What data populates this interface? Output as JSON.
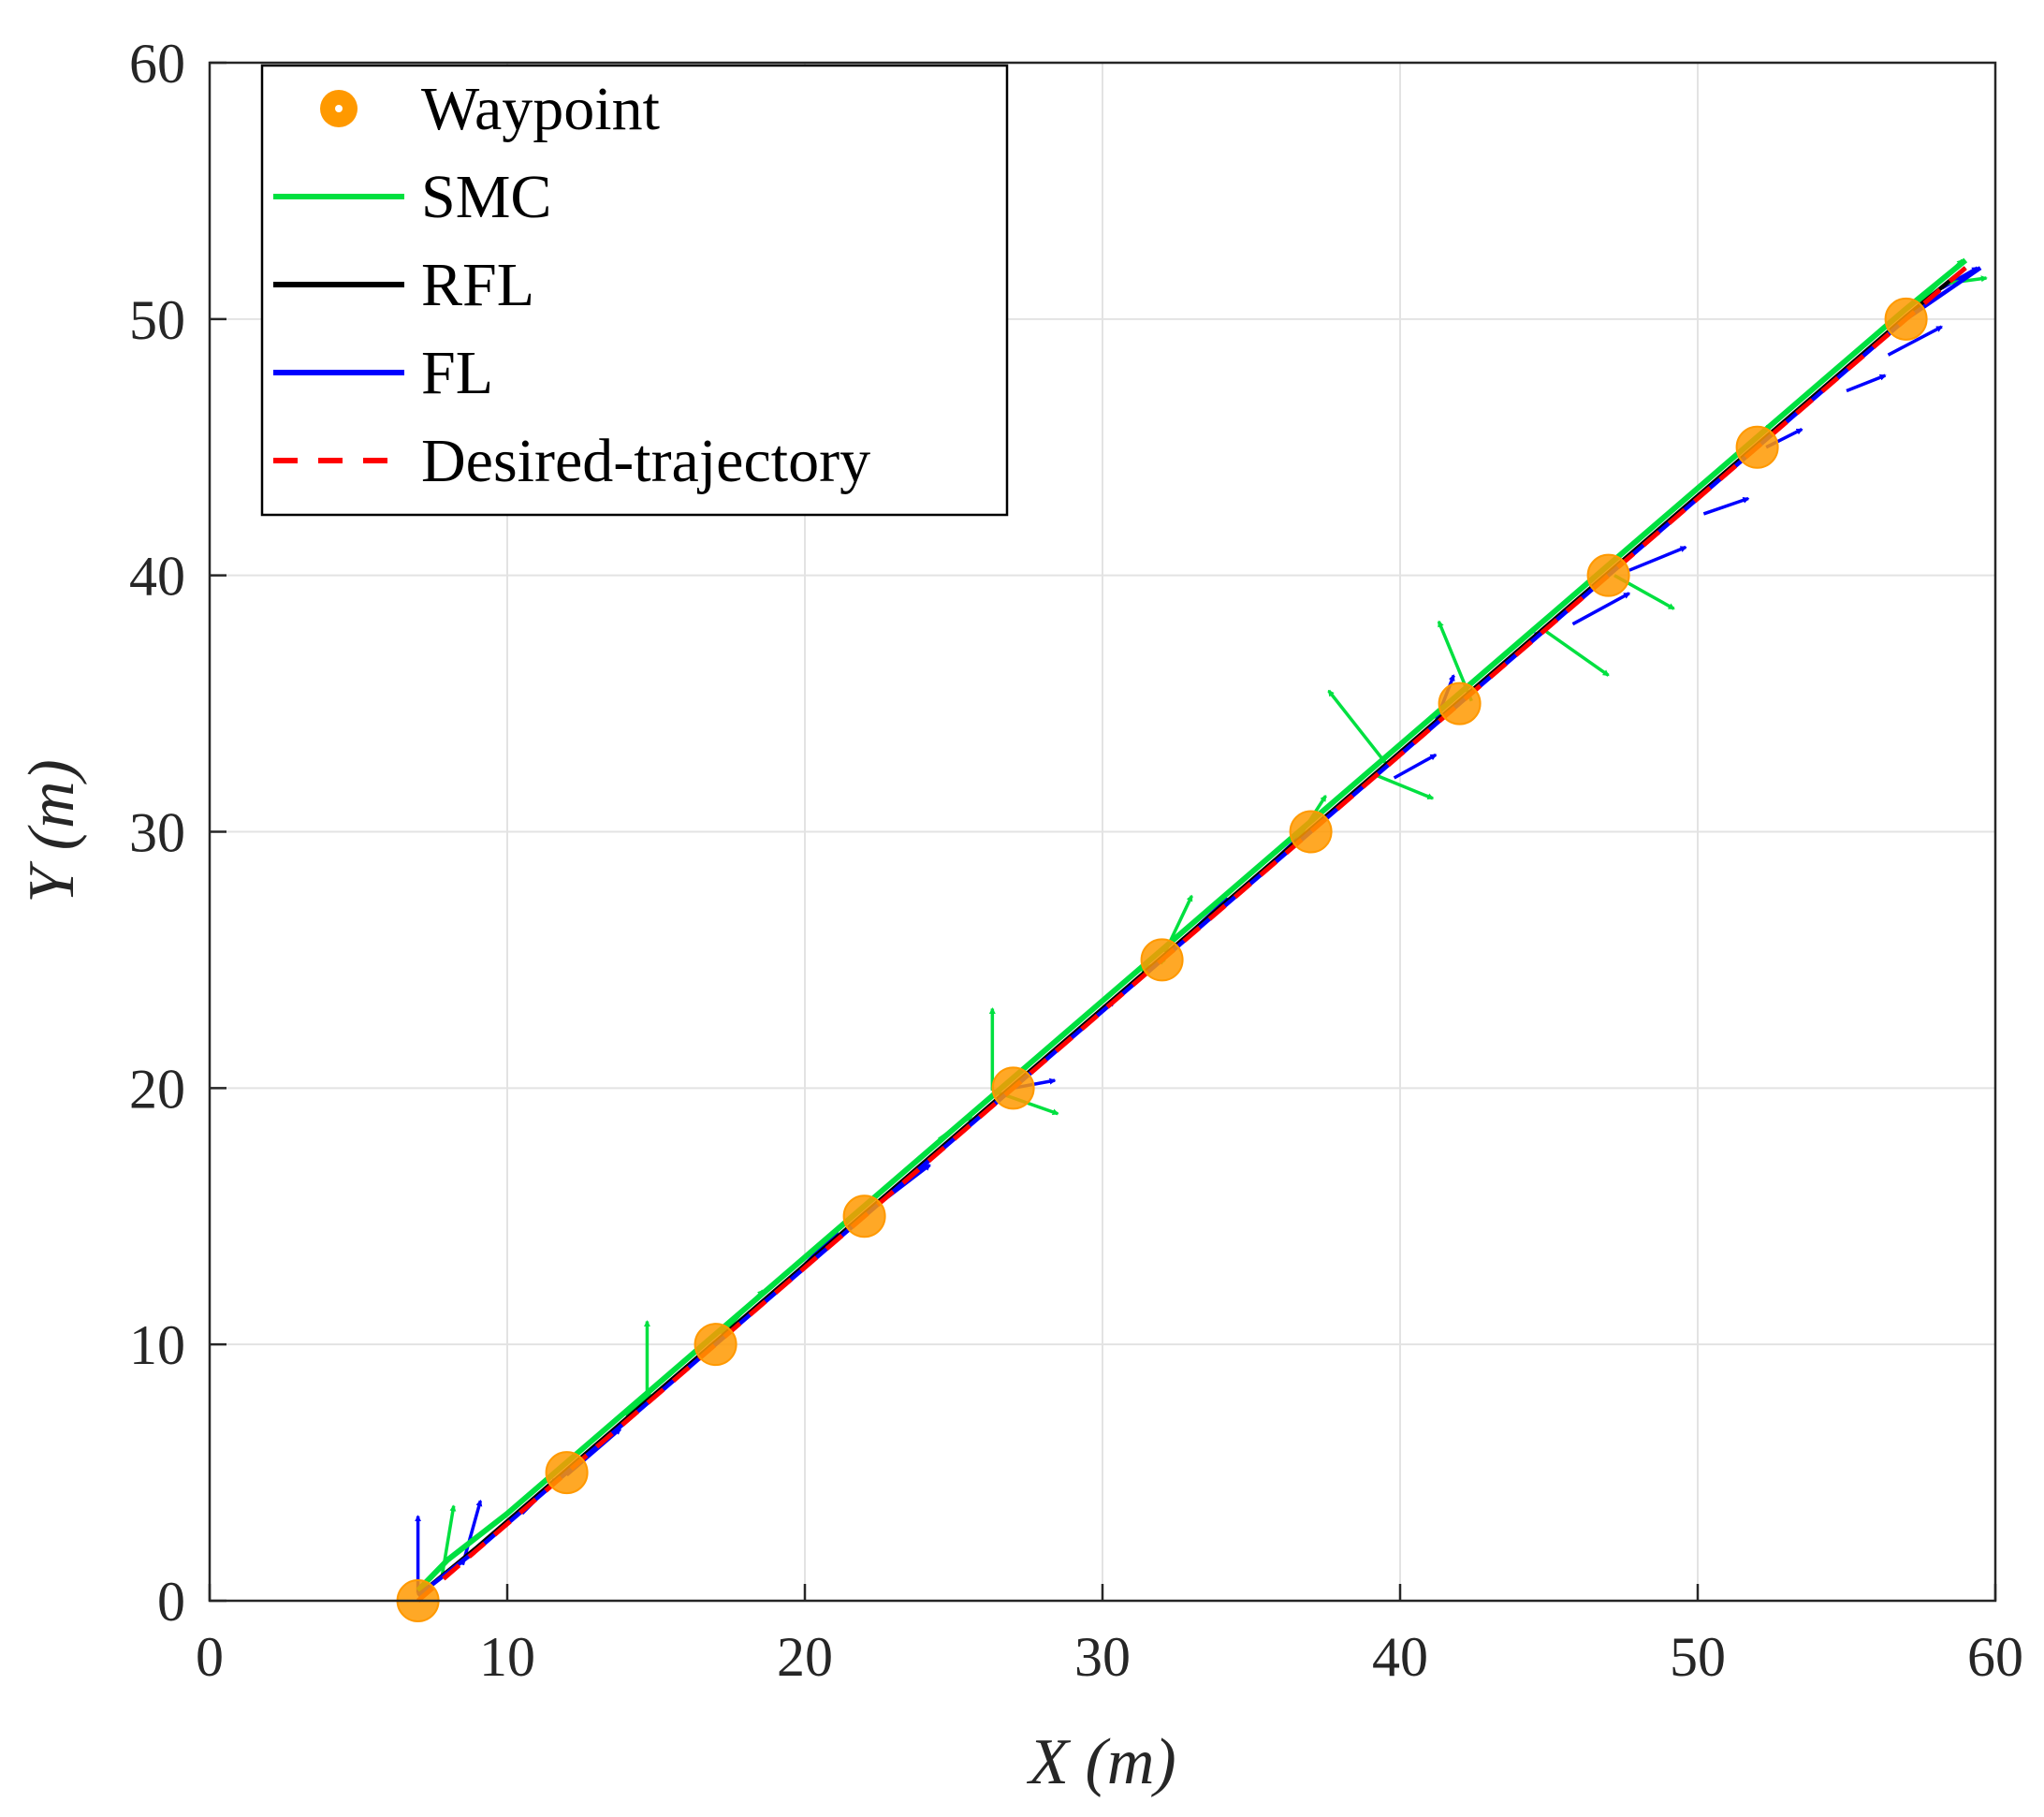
{
  "chart_data": {
    "type": "line",
    "xlabel": "X (m)",
    "ylabel": "Y (m)",
    "xlim": [
      0,
      60
    ],
    "ylim": [
      0,
      60
    ],
    "xticks": [
      0,
      10,
      20,
      30,
      40,
      50,
      60
    ],
    "yticks": [
      0,
      10,
      20,
      30,
      40,
      50,
      60
    ],
    "grid": true,
    "legend_position": "top-left",
    "waypoints": {
      "name": "Waypoint",
      "color": "#FF9900",
      "x": [
        7,
        12,
        17,
        22,
        27,
        32,
        37,
        42,
        47,
        52,
        57
      ],
      "y": [
        0,
        5,
        10,
        15,
        20,
        25,
        30,
        35,
        40,
        45,
        50
      ]
    },
    "series": [
      {
        "name": "SMC",
        "color": "#00E040",
        "style": "solid",
        "x": [
          7,
          8,
          10,
          12,
          14.5,
          17,
          19.5,
          22,
          24.5,
          27,
          29.5,
          32,
          34.5,
          37,
          39.5,
          42,
          44.5,
          47,
          49.5,
          52,
          54.5,
          57,
          59
        ],
        "y": [
          0.4,
          1.6,
          3.4,
          5.4,
          7.9,
          10.4,
          12.9,
          15.4,
          17.9,
          20.4,
          22.9,
          25.4,
          27.9,
          30.4,
          32.9,
          35.4,
          37.9,
          40.4,
          42.9,
          45.4,
          47.9,
          50.4,
          52.3
        ]
      },
      {
        "name": "RFL",
        "color": "#000000",
        "style": "solid",
        "x": [
          7,
          9,
          12,
          17,
          22,
          27,
          32,
          37,
          42,
          47,
          52,
          57,
          59
        ],
        "y": [
          0.2,
          2.1,
          5.1,
          10.1,
          15.1,
          20.1,
          25.1,
          30.1,
          35.1,
          40.1,
          45.1,
          50.1,
          52
        ]
      },
      {
        "name": "FL",
        "color": "#0000FF",
        "style": "solid",
        "x": [
          7,
          9,
          12,
          17,
          22,
          27,
          32,
          37,
          42,
          47,
          52,
          57,
          59.5
        ],
        "y": [
          0.2,
          2,
          5,
          10,
          15,
          20,
          25,
          30,
          35,
          40,
          45,
          50,
          52
        ]
      },
      {
        "name": "Desired-trajectory",
        "color": "#FF0000",
        "style": "dashed",
        "x": [
          7,
          59
        ],
        "y": [
          0,
          52
        ]
      }
    ],
    "orientation_arrows": [
      {
        "color": "#0000FF",
        "x": 7,
        "y": 0.3,
        "dx": 0,
        "dy": 3
      },
      {
        "color": "#00E040",
        "x": 7.8,
        "y": 0.9,
        "dx": 0.4,
        "dy": 2.8
      },
      {
        "color": "#0000FF",
        "x": 8.5,
        "y": 1.4,
        "dx": 0.6,
        "dy": 2.5
      },
      {
        "color": "#0000FF",
        "x": 10.5,
        "y": 3.4,
        "dx": 1.2,
        "dy": 1.4
      },
      {
        "color": "#0000FF",
        "x": 12,
        "y": 4.9,
        "dx": 1.8,
        "dy": 1.8
      },
      {
        "color": "#00E040",
        "x": 14,
        "y": 7.2,
        "dx": 0.8,
        "dy": 0.9
      },
      {
        "color": "#00E040",
        "x": 14.7,
        "y": 7.9,
        "dx": 0,
        "dy": 3
      },
      {
        "color": "#0000FF",
        "x": 16.4,
        "y": 9.4,
        "dx": 1.2,
        "dy": 1.3
      },
      {
        "color": "#00E040",
        "x": 17.2,
        "y": 10.4,
        "dx": 1.4,
        "dy": 1.7
      },
      {
        "color": "#0000FF",
        "x": 19.2,
        "y": 12.2,
        "dx": 1.9,
        "dy": 2.2
      },
      {
        "color": "#0000FF",
        "x": 22.4,
        "y": 15.4,
        "dx": 1.8,
        "dy": 1.6
      },
      {
        "color": "#00E040",
        "x": 24.5,
        "y": 18,
        "dx": 1.1,
        "dy": 0.9
      },
      {
        "color": "#00E040",
        "x": 26.3,
        "y": 19.9,
        "dx": 0,
        "dy": 3.2
      },
      {
        "color": "#00E040",
        "x": 26.3,
        "y": 19.9,
        "dx": 2.2,
        "dy": -0.9
      },
      {
        "color": "#0000FF",
        "x": 27,
        "y": 20,
        "dx": 1.4,
        "dy": 0.3
      },
      {
        "color": "#0000FF",
        "x": 29.2,
        "y": 22.2,
        "dx": 1.2,
        "dy": 1.2
      },
      {
        "color": "#00E040",
        "x": 31.3,
        "y": 24.6,
        "dx": 0.8,
        "dy": 0.4
      },
      {
        "color": "#00E040",
        "x": 32.1,
        "y": 25.3,
        "dx": 0.9,
        "dy": 2.2
      },
      {
        "color": "#0000FF",
        "x": 32.8,
        "y": 25.9,
        "dx": 1.4,
        "dy": 1.5
      },
      {
        "color": "#0000FF",
        "x": 35.7,
        "y": 28.8,
        "dx": 1,
        "dy": 1.1
      },
      {
        "color": "#00E040",
        "x": 36.5,
        "y": 29.6,
        "dx": 1,
        "dy": 1.8
      },
      {
        "color": "#00E040",
        "x": 39.5,
        "y": 32.7,
        "dx": -1.9,
        "dy": 2.8
      },
      {
        "color": "#00E040",
        "x": 39.2,
        "y": 32.2,
        "dx": 1.9,
        "dy": -0.9
      },
      {
        "color": "#0000FF",
        "x": 39.8,
        "y": 32.1,
        "dx": 1.4,
        "dy": 0.9
      },
      {
        "color": "#0000FF",
        "x": 41.2,
        "y": 34.3,
        "dx": 0.6,
        "dy": 1.8
      },
      {
        "color": "#00E040",
        "x": 42.4,
        "y": 35.1,
        "dx": -1.1,
        "dy": 3.1
      },
      {
        "color": "#0000FF",
        "x": 43.6,
        "y": 36.7,
        "dx": 1.1,
        "dy": 1.1
      },
      {
        "color": "#00E040",
        "x": 44.8,
        "y": 37.9,
        "dx": 2.2,
        "dy": -1.8
      },
      {
        "color": "#0000FF",
        "x": 45.8,
        "y": 38.1,
        "dx": 1.9,
        "dy": 1.2
      },
      {
        "color": "#00E040",
        "x": 47.2,
        "y": 40,
        "dx": 2,
        "dy": -1.3
      },
      {
        "color": "#0000FF",
        "x": 47.7,
        "y": 40.2,
        "dx": 1.9,
        "dy": 0.9
      },
      {
        "color": "#0000FF",
        "x": 50.2,
        "y": 42.4,
        "dx": 1.5,
        "dy": 0.6
      },
      {
        "color": "#00E040",
        "x": 51.6,
        "y": 45,
        "dx": 0.9,
        "dy": 0.9
      },
      {
        "color": "#0000FF",
        "x": 52.3,
        "y": 45,
        "dx": 1.2,
        "dy": 0.7
      },
      {
        "color": "#0000FF",
        "x": 55,
        "y": 47.2,
        "dx": 1.3,
        "dy": 0.6
      },
      {
        "color": "#0000FF",
        "x": 56.4,
        "y": 48.6,
        "dx": 1.8,
        "dy": 1.1
      },
      {
        "color": "#00E040",
        "x": 57.4,
        "y": 50.6,
        "dx": 1.5,
        "dy": 1.7
      },
      {
        "color": "#0000FF",
        "x": 58.2,
        "y": 51.2,
        "dx": 1.2,
        "dy": 0.8
      },
      {
        "color": "#00E040",
        "x": 58.4,
        "y": 51.4,
        "dx": 1.3,
        "dy": 0.2
      }
    ]
  }
}
